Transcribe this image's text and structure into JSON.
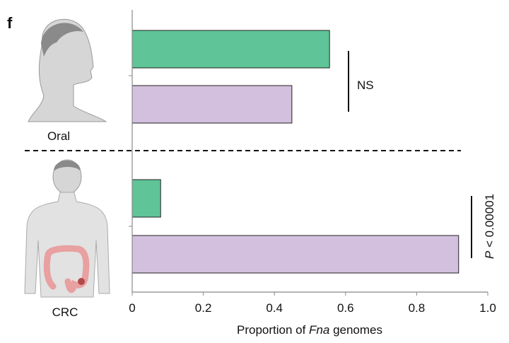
{
  "panel_label": "f",
  "chart_data": {
    "type": "bar",
    "orientation": "horizontal",
    "xlabel_prefix": "Proportion of ",
    "xlabel_italic": "Fna",
    "xlabel_suffix": " genomes",
    "xlim": [
      0,
      1.0
    ],
    "xticks": [
      "0",
      "0.2",
      "0.4",
      "0.6",
      "0.8",
      "1.0"
    ],
    "groups": [
      {
        "label": "Oral",
        "values": [
          0.555,
          0.449
        ],
        "significance": "NS"
      },
      {
        "label": "CRC",
        "values": [
          0.08,
          0.918
        ],
        "significance_italic": "P",
        "significance": " < 0.00001"
      }
    ],
    "series_colors": [
      "#5fc498",
      "#d3c0de"
    ]
  }
}
